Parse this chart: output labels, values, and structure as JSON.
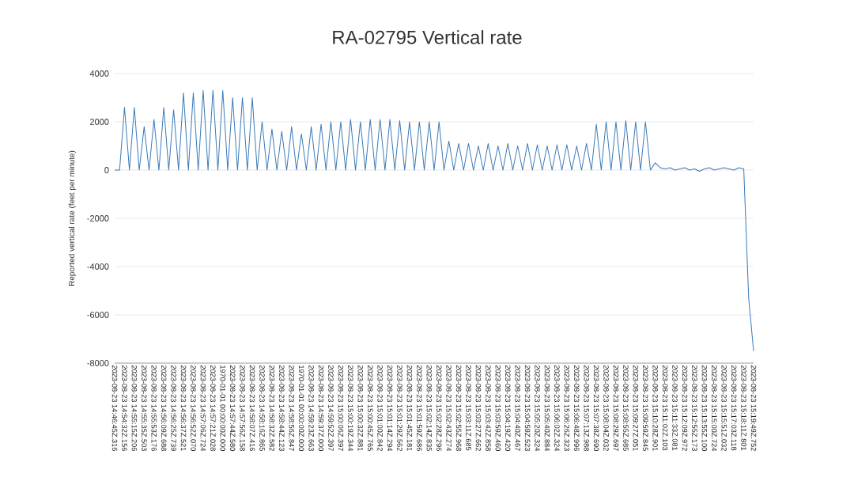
{
  "chart_data": {
    "type": "line",
    "title": "RA-02795 Vertical rate",
    "ylabel": "Reported vertical rate (feet per minute)",
    "categories": [
      "2023-08-23 14:46:45Z.316",
      null,
      "2023-08-23 14:54:32Z.156",
      null,
      "2023-08-23 14:55:15Z.206",
      null,
      "2023-08-23 14:55:35Z.503",
      null,
      "2023-08-23 14:55:53Z.176",
      null,
      "2023-08-23 14:56:09Z.688",
      null,
      "2023-08-23 14:56:25Z.739",
      null,
      "2023-08-23 14:56:37Z.521",
      null,
      "2023-08-23 14:56:52Z.070",
      null,
      "2023-08-23 14:57:06Z.724",
      null,
      "2023-08-23 14:57:21Z.028",
      null,
      "1970-01-01 00:00:00Z.000",
      null,
      "2023-08-23 14:57:44Z.580",
      null,
      "2023-08-23 14:57:56Z.158",
      null,
      "2023-08-23 14:58:07Z.416",
      null,
      "2023-08-23 14:58:16Z.865",
      null,
      "2023-08-23 14:58:32Z.582",
      null,
      "2023-08-23 14:58:44Z.123",
      null,
      "2023-08-23 14:58:56Z.847",
      null,
      "1970-01-01 00:00:00Z.000",
      null,
      "2023-08-23 14:59:23Z.663",
      null,
      "2023-08-23 14:59:37Z.000",
      null,
      "2023-08-23 14:59:52Z.397",
      null,
      "2023-08-23 15:00:06Z.397",
      null,
      "2023-08-23 15:00:19Z.344",
      null,
      "2023-08-23 15:00:32Z.881",
      null,
      "2023-08-23 15:00:45Z.765",
      null,
      "2023-08-23 15:01:00Z.842",
      null,
      "2023-08-23 15:01:14Z.294",
      null,
      "2023-08-23 15:01:29Z.562",
      null,
      "2023-08-23 15:01:45Z.181",
      null,
      "2023-08-23 15:01:59Z.686",
      null,
      "2023-08-23 15:02:14Z.835",
      null,
      "2023-08-23 15:02:28Z.296",
      null,
      "2023-08-23 15:02:43Z.274",
      null,
      "2023-08-23 15:02:55Z.968",
      null,
      "2023-08-23 15:03:11Z.685",
      null,
      "2023-08-23 15:03:27Z.662",
      null,
      "2023-08-23 15:03:42Z.858",
      null,
      "2023-08-23 15:03:59Z.460",
      null,
      "2023-08-23 15:04:19Z.420",
      null,
      "2023-08-23 15:04:40Z.467",
      null,
      "2023-08-23 15:04:59Z.523",
      null,
      "2023-08-23 15:05:20Z.324",
      null,
      "2023-08-23 15:05:40Z.884",
      null,
      "2023-08-23 15:06:02Z.324",
      null,
      "2023-08-23 15:06:26Z.323",
      null,
      "2023-08-23 15:06:48Z.996",
      null,
      "2023-08-23 15:07:13Z.988",
      null,
      "2023-08-23 15:07:38Z.690",
      null,
      "2023-08-23 15:08:04Z.032",
      null,
      "2023-08-23 15:08:29Z.697",
      null,
      "2023-08-23 15:08:55Z.685",
      null,
      "2023-08-23 15:09:27Z.051",
      null,
      "2023-08-23 15:09:59Z.845",
      null,
      "2023-08-23 15:10:28Z.901",
      null,
      "2023-08-23 15:11:02Z.103",
      null,
      "2023-08-23 15:11:33Z.081",
      null,
      "2023-08-23 15:12:09Z.972",
      null,
      "2023-08-23 15:12:55Z.173",
      null,
      "2023-08-23 15:13:55Z.100",
      null,
      "2023-08-23 15:15:00Z.724",
      null,
      "2023-08-23 15:15:51Z.032",
      null,
      "2023-08-23 15:17:03Z.118",
      null,
      "2023-08-23 15:18:11Z.801",
      null,
      "2023-08-23 15:19:49Z.752"
    ],
    "values": [
      0,
      0,
      2600,
      0,
      2600,
      0,
      1800,
      0,
      2100,
      0,
      2600,
      0,
      2500,
      0,
      3200,
      0,
      3200,
      0,
      3300,
      0,
      3300,
      0,
      3300,
      0,
      3000,
      0,
      3000,
      0,
      3000,
      0,
      2000,
      0,
      1700,
      0,
      1600,
      0,
      1800,
      0,
      1500,
      0,
      1800,
      0,
      1900,
      0,
      2000,
      0,
      2000,
      0,
      2100,
      0,
      2000,
      0,
      2100,
      0,
      2100,
      0,
      2100,
      0,
      2050,
      0,
      2000,
      0,
      2000,
      0,
      2000,
      0,
      2000,
      0,
      1200,
      0,
      1100,
      0,
      1100,
      0,
      1000,
      0,
      1100,
      0,
      1000,
      0,
      1100,
      0,
      1000,
      0,
      1100,
      0,
      1050,
      0,
      1000,
      0,
      1050,
      0,
      1050,
      0,
      1000,
      0,
      1100,
      0,
      1900,
      0,
      2000,
      0,
      2000,
      0,
      2050,
      0,
      2000,
      0,
      2000,
      0,
      300,
      100,
      50,
      100,
      0,
      50,
      100,
      0,
      50,
      -50,
      50,
      100,
      0,
      50,
      100,
      50,
      0,
      100,
      50,
      -5300,
      -7500
    ],
    "color": "#3a7ab8",
    "ylim": [
      -8000,
      4000
    ],
    "yticks": [
      -8000,
      -6000,
      -4000,
      -2000,
      0,
      2000,
      4000
    ],
    "grid": "y"
  }
}
